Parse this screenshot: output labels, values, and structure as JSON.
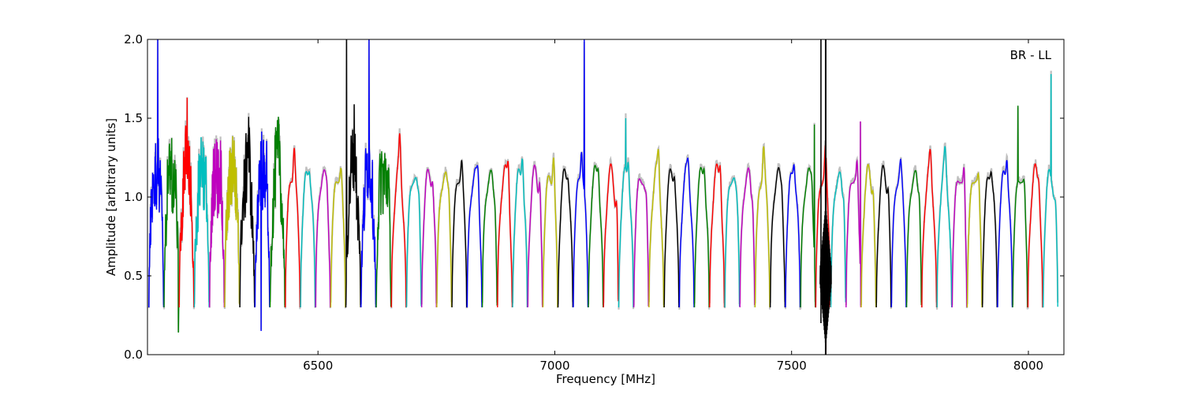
{
  "chart_data": {
    "type": "line",
    "title": "",
    "annotation": "BR - LL",
    "xlabel": "Frequency [MHz]",
    "ylabel": "Amplitude [arbitrary units]",
    "xlim": [
      6140,
      8075
    ],
    "ylim": [
      0.0,
      2.0
    ],
    "x_ticks": [
      6500,
      7000,
      7500,
      8000
    ],
    "x_tick_labels": [
      "6500",
      "7000",
      "7500",
      "8000"
    ],
    "y_ticks": [
      0.0,
      0.5,
      1.0,
      1.5,
      2.0
    ],
    "y_tick_labels": [
      "0.0",
      "0.5",
      "1.0",
      "1.5",
      "2.0"
    ],
    "grid": false,
    "background_series": {
      "color": "#c0c0c0",
      "description_free": true
    },
    "colors": [
      "#0000ff",
      "#008000",
      "#ff0000",
      "#00bfbf",
      "#bf00bf",
      "#bfbf00",
      "#000000"
    ],
    "subband_width_mhz": 32,
    "first_subband_start_mhz": 6143,
    "subbands": 60,
    "typical_profile": {
      "edge_minimum": 0.3,
      "plateau": 1.15,
      "peak": 1.3
    },
    "notable_peaks": [
      {
        "x": 6162,
        "y": 2.0
      },
      {
        "x": 6224,
        "y": 1.63
      },
      {
        "x": 6560,
        "y": 2.0
      },
      {
        "x": 6608,
        "y": 2.0
      },
      {
        "x": 7062,
        "y": 2.0
      },
      {
        "x": 7150,
        "y": 1.5
      },
      {
        "x": 7548,
        "y": 1.46
      },
      {
        "x": 7646,
        "y": 1.48
      },
      {
        "x": 7978,
        "y": 1.58
      },
      {
        "x": 8048,
        "y": 1.78
      }
    ],
    "notable_dips": [
      {
        "x": 6206,
        "y": 0.14
      },
      {
        "x": 6380,
        "y": 0.15
      },
      {
        "x": 7572,
        "y": 0.0
      }
    ]
  }
}
